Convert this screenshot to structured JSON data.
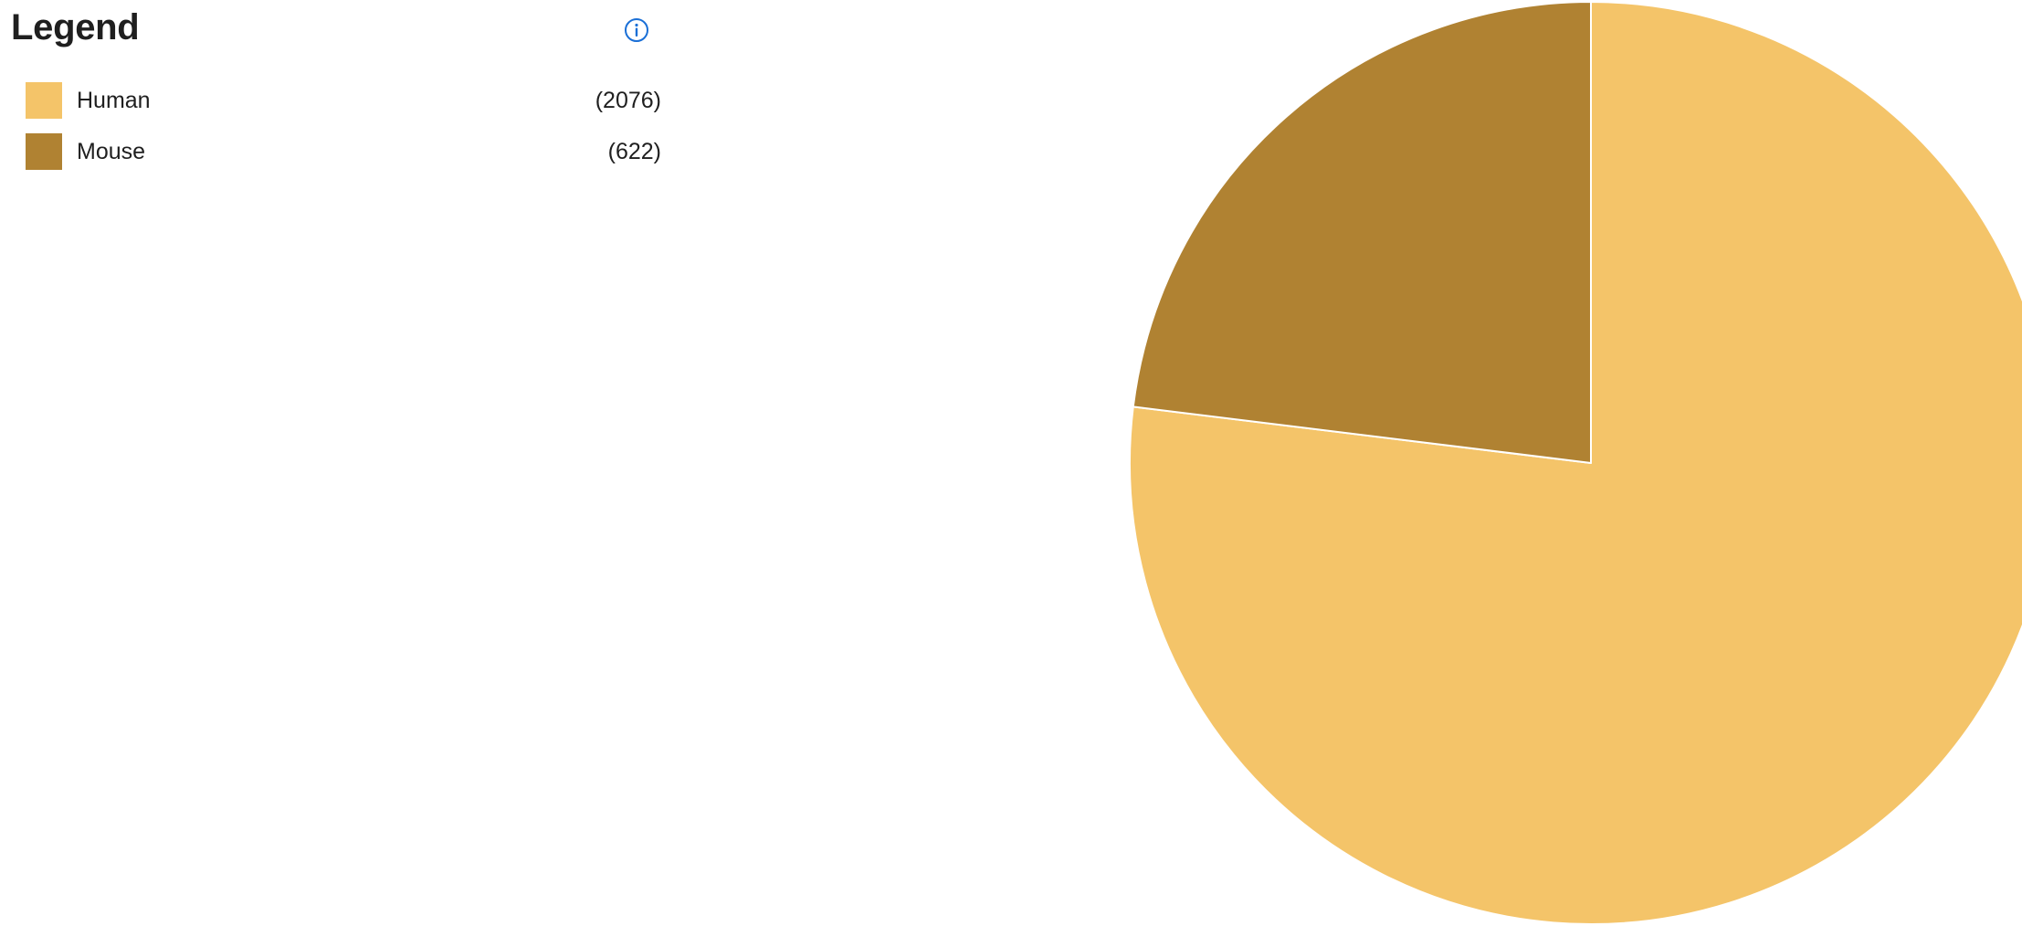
{
  "legend": {
    "title": "Legend",
    "info_icon": "info-circle-icon",
    "info_icon_color": "#1a6fd6"
  },
  "chart_data": {
    "type": "pie",
    "title": "",
    "start_angle_deg": 0,
    "direction": "clockwise",
    "slice_border_color": "#ffffff",
    "slices": [
      {
        "label": "Human",
        "value": 2076,
        "count_text": "(2076)",
        "color": "#f4c469"
      },
      {
        "label": "Mouse",
        "value": 622,
        "count_text": "(622)",
        "color": "#b08232"
      }
    ]
  }
}
